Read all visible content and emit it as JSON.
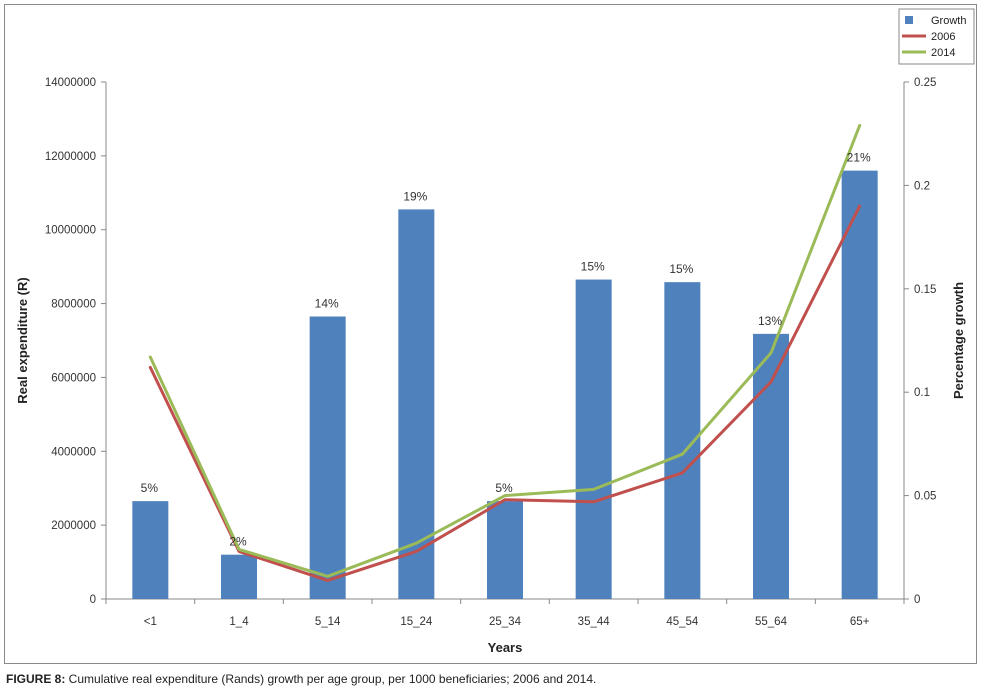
{
  "caption": {
    "lead": "FIGURE 8:",
    "text": " Cumulative real expenditure (Rands) growth per age group, per 1000 beneficiaries; 2006 and 2014."
  },
  "chart_data": {
    "type": "bar",
    "xlabel": "Years",
    "ylabel": "Real expenditure (R)",
    "y2label": "Percentage growth",
    "categories": [
      "<1",
      "1_4",
      "5_14",
      "15_24",
      "25_34",
      "35_44",
      "45_54",
      "55_64",
      "65+"
    ],
    "ylim": [
      0,
      14000000
    ],
    "yticks": [
      "0",
      "2000000",
      "4000000",
      "6000000",
      "8000000",
      "10000000",
      "12000000",
      "14000000"
    ],
    "y2lim": [
      0,
      0.25
    ],
    "y2ticks": [
      "0",
      "0.05",
      "0.1",
      "0.15",
      "0.2",
      "0.25"
    ],
    "legend_position": "top-right",
    "series": [
      {
        "name": "Growth",
        "type": "bar",
        "axis": "left",
        "color": "#4f81bd",
        "values": [
          2650000,
          1200000,
          7650000,
          10550000,
          2650000,
          8650000,
          8580000,
          7180000,
          11600000
        ],
        "labels": [
          "5%",
          "2%",
          "14%",
          "19%",
          "5%",
          "15%",
          "15%",
          "13%",
          "21%"
        ]
      },
      {
        "name": "2006",
        "type": "line",
        "axis": "right",
        "color": "#c0504d",
        "values": [
          0.112,
          0.023,
          0.009,
          0.023,
          0.048,
          0.047,
          0.061,
          0.105,
          0.19
        ]
      },
      {
        "name": "2014",
        "type": "line",
        "axis": "right",
        "color": "#9bbb59",
        "values": [
          0.117,
          0.024,
          0.011,
          0.027,
          0.05,
          0.053,
          0.07,
          0.119,
          0.229
        ]
      }
    ]
  }
}
